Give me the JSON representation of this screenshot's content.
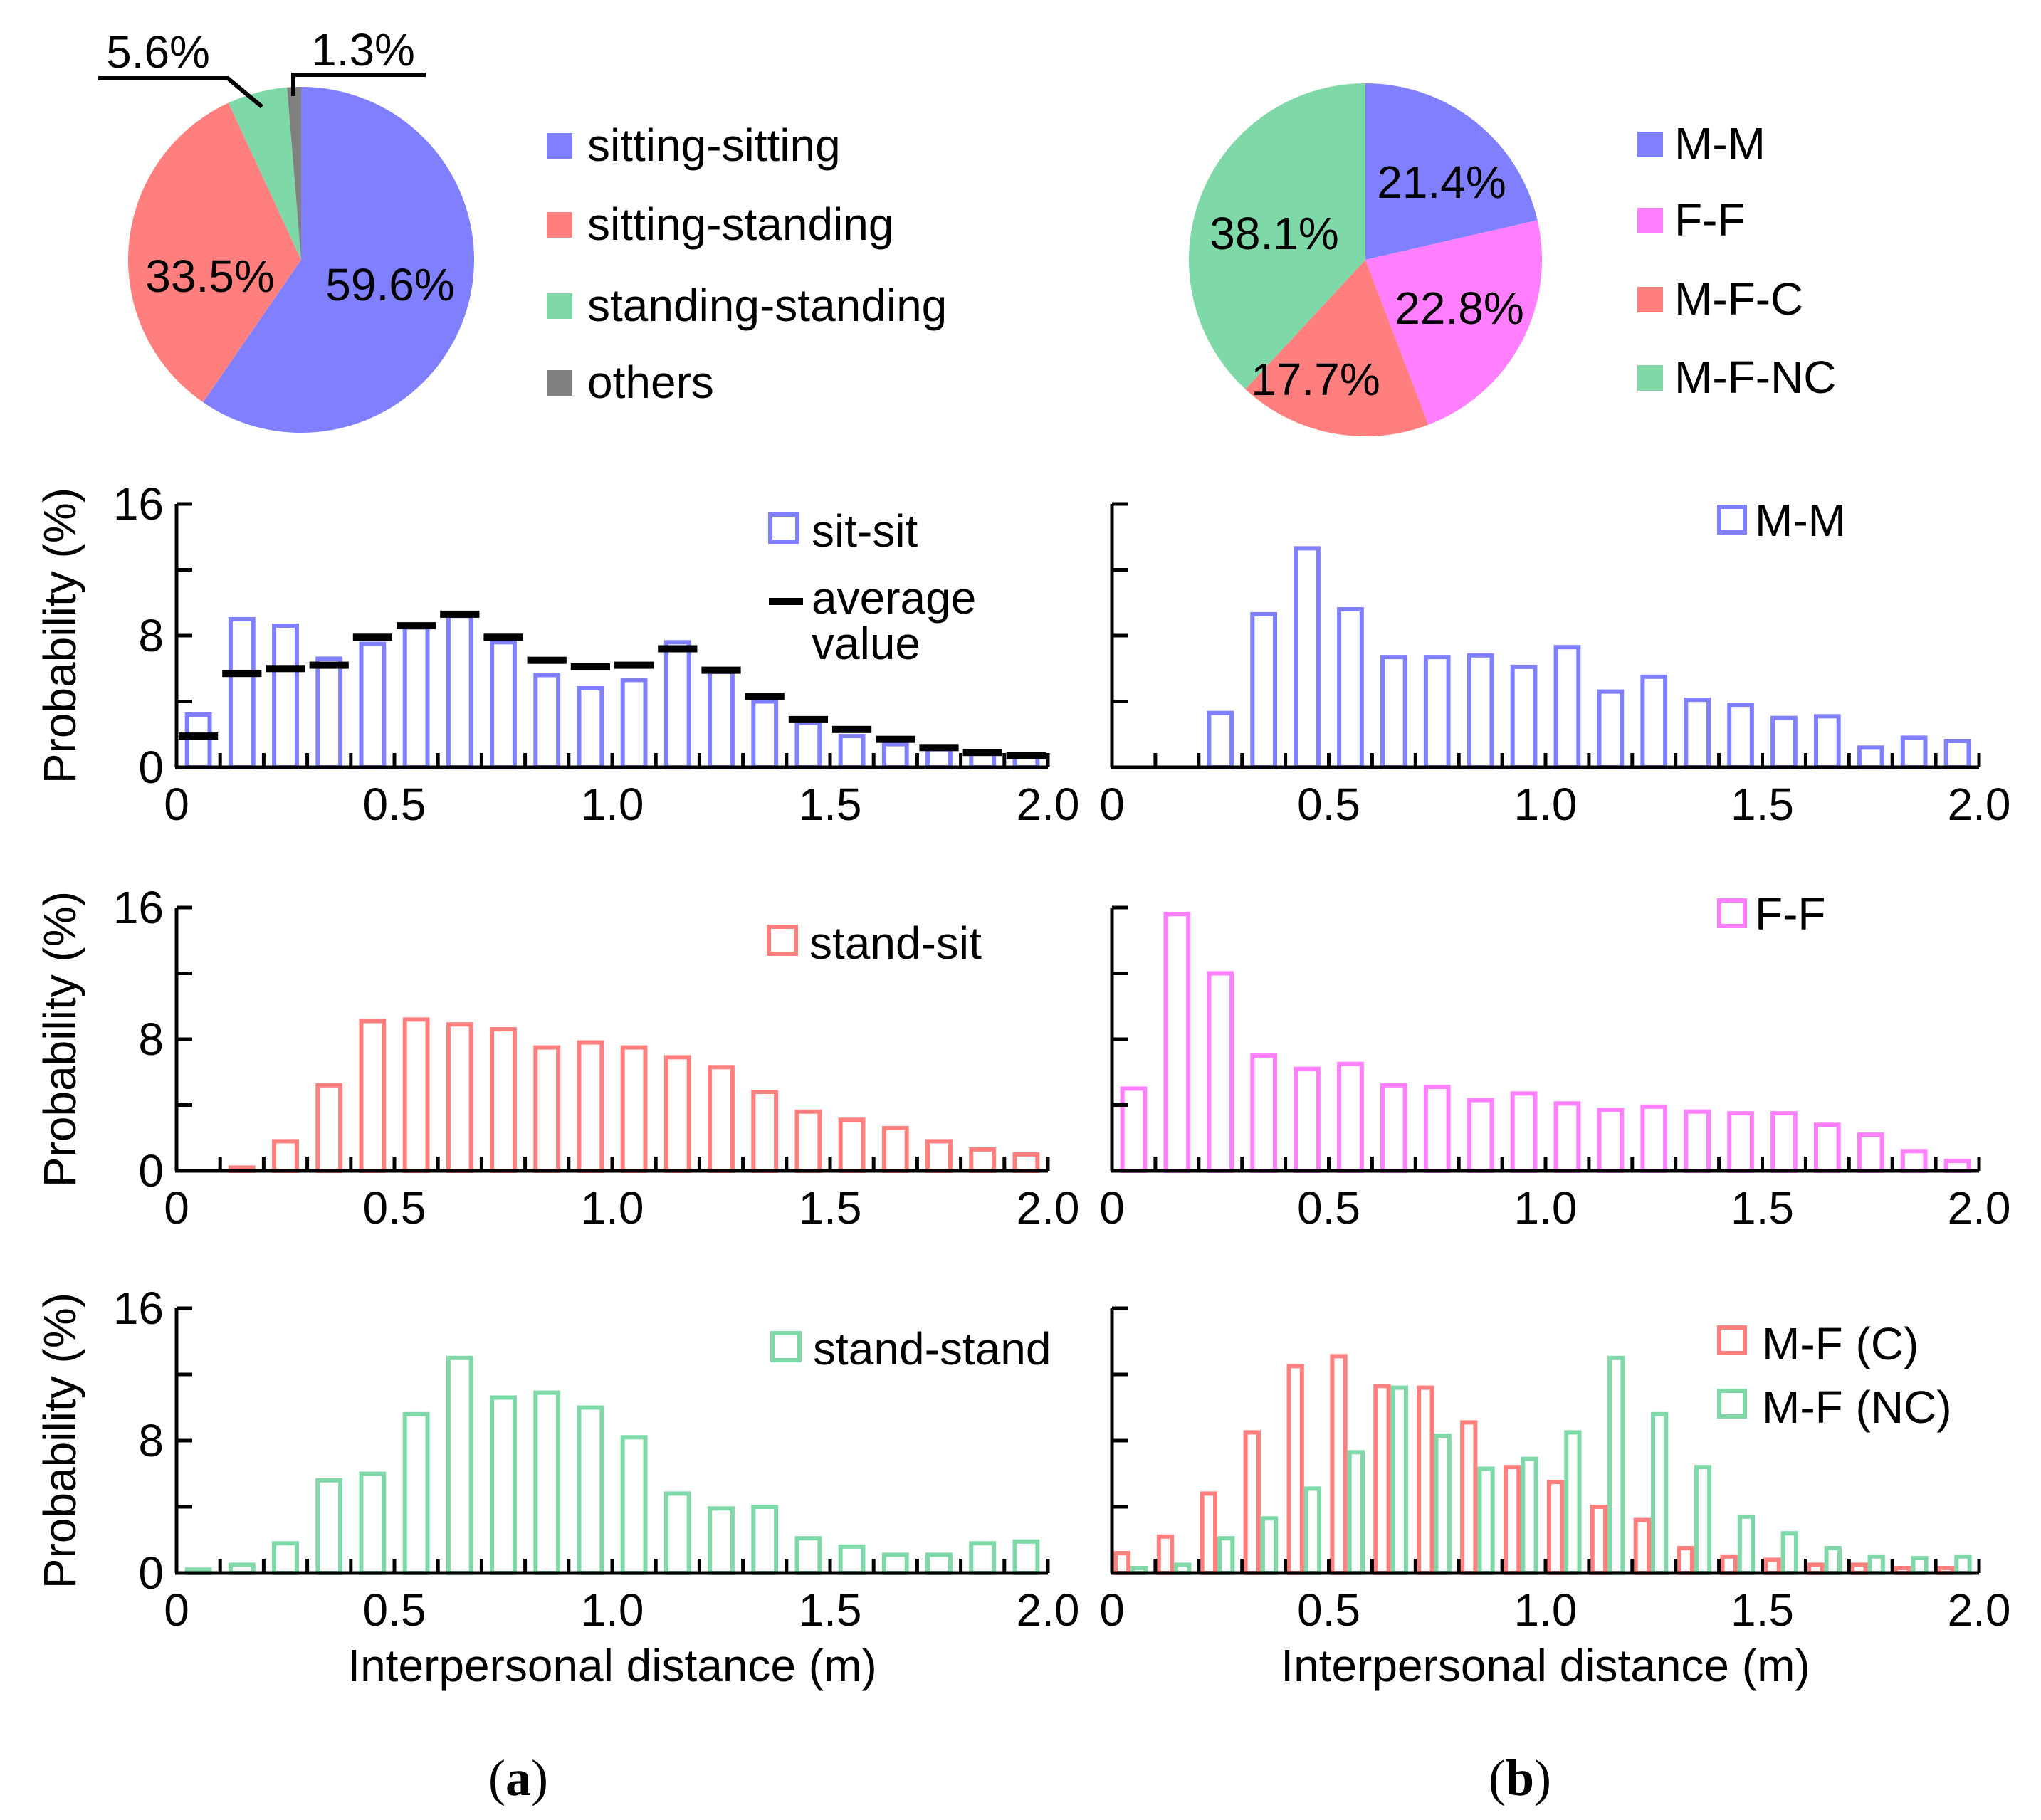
{
  "colors": {
    "blue": "#8080ff",
    "red": "#ff7f7f",
    "green": "#7fd8a8",
    "magenta": "#ff7fff",
    "gray": "#808080",
    "axis": "#000000"
  },
  "panel_labels": {
    "a_open": "(",
    "a": "a",
    "a_close": ")",
    "b_open": "(",
    "b": "b",
    "b_close": ")"
  },
  "chart_data": [
    {
      "id": "pie-a",
      "type": "pie",
      "slices": [
        {
          "label": "sitting-sitting",
          "value": 59.6,
          "text": "59.6%",
          "color": "#8080ff"
        },
        {
          "label": "sitting-standing",
          "value": 33.5,
          "text": "33.5%",
          "color": "#ff7f7f"
        },
        {
          "label": "standing-standing",
          "value": 5.6,
          "text": "5.6%",
          "color": "#7fd8a8"
        },
        {
          "label": "others",
          "value": 1.3,
          "text": "1.3%",
          "color": "#808080"
        }
      ],
      "legend": [
        "sitting-sitting",
        "sitting-standing",
        "standing-standing",
        "others"
      ]
    },
    {
      "id": "pie-b",
      "type": "pie",
      "slices": [
        {
          "label": "M-M",
          "value": 21.4,
          "text": "21.4%",
          "color": "#8080ff"
        },
        {
          "label": "F-F",
          "value": 22.8,
          "text": "22.8%",
          "color": "#ff7fff"
        },
        {
          "label": "M-F_C",
          "value": 17.7,
          "text": "17.7%",
          "color": "#ff7f7f"
        },
        {
          "label": "M-F_NC",
          "value": 38.1,
          "text": "38.1%",
          "color": "#7fd8a8"
        }
      ],
      "legend": [
        "M-M",
        "F-F",
        "M-F‐C",
        "M-F‐NC"
      ]
    },
    {
      "id": "hist-a1",
      "type": "bar",
      "x": [
        0.05,
        0.15,
        0.25,
        0.35,
        0.45,
        0.55,
        0.65,
        0.75,
        0.85,
        0.95,
        1.05,
        1.15,
        1.25,
        1.35,
        1.45,
        1.55,
        1.65,
        1.75,
        1.85,
        1.95
      ],
      "series": [
        {
          "name": "sit-sit",
          "color": "#8080ff",
          "values": [
            3.2,
            9.0,
            8.6,
            6.6,
            7.5,
            8.5,
            9.2,
            7.6,
            5.6,
            4.8,
            5.3,
            7.6,
            5.8,
            4.0,
            2.7,
            1.9,
            1.4,
            1.1,
            0.9,
            0.7
          ]
        }
      ],
      "average": {
        "name": "average value",
        "values": [
          1.9,
          5.7,
          6.0,
          6.2,
          7.9,
          8.6,
          9.3,
          7.9,
          6.5,
          6.1,
          6.2,
          7.2,
          5.9,
          4.3,
          2.9,
          2.3,
          1.7,
          1.2,
          0.9,
          0.7
        ]
      },
      "ylim": [
        0,
        16
      ],
      "yticks": [
        "0",
        "8",
        "16"
      ],
      "ylabel": "Probability (%)",
      "xlim": [
        0,
        2.0
      ],
      "xticks": [
        "0",
        "0.5",
        "1.0",
        "1.5",
        "2.0"
      ],
      "legend": [
        "sit-sit",
        "average",
        "value"
      ]
    },
    {
      "id": "hist-b1",
      "type": "bar",
      "x": [
        0.05,
        0.15,
        0.25,
        0.35,
        0.45,
        0.55,
        0.65,
        0.75,
        0.85,
        0.95,
        1.05,
        1.15,
        1.25,
        1.35,
        1.45,
        1.55,
        1.65,
        1.75,
        1.85,
        1.95
      ],
      "series": [
        {
          "name": "M-M",
          "color": "#8080ff",
          "values": [
            0,
            0,
            3.3,
            9.3,
            13.3,
            9.6,
            6.7,
            6.7,
            6.8,
            6.1,
            7.3,
            4.6,
            5.5,
            4.1,
            3.8,
            3.0,
            3.1,
            1.2,
            1.8,
            1.6
          ]
        }
      ],
      "ylim": [
        0,
        16
      ],
      "yticks": [],
      "xlim": [
        0,
        2.0
      ],
      "xticks": [
        "0",
        "0.5",
        "1.0",
        "1.5",
        "2.0"
      ],
      "legend": [
        "M-M"
      ]
    },
    {
      "id": "hist-a2",
      "type": "bar",
      "x": [
        0.05,
        0.15,
        0.25,
        0.35,
        0.45,
        0.55,
        0.65,
        0.75,
        0.85,
        0.95,
        1.05,
        1.15,
        1.25,
        1.35,
        1.45,
        1.55,
        1.65,
        1.75,
        1.85,
        1.95
      ],
      "series": [
        {
          "name": "stand-sit",
          "color": "#ff7f7f",
          "values": [
            0,
            0.2,
            1.8,
            5.2,
            9.1,
            9.2,
            8.9,
            8.6,
            7.5,
            7.8,
            7.5,
            6.9,
            6.3,
            4.8,
            3.6,
            3.1,
            2.6,
            1.8,
            1.3,
            1.0
          ]
        }
      ],
      "ylim": [
        0,
        16
      ],
      "yticks": [
        "0",
        "8",
        "16"
      ],
      "ylabel": "Probability (%)",
      "xlim": [
        0,
        2.0
      ],
      "xticks": [
        "0",
        "0.5",
        "1.0",
        "1.5",
        "2.0"
      ],
      "legend": [
        "stand-sit"
      ]
    },
    {
      "id": "hist-b2",
      "type": "bar",
      "x": [
        0.05,
        0.15,
        0.25,
        0.35,
        0.45,
        0.55,
        0.65,
        0.75,
        0.85,
        0.95,
        1.05,
        1.15,
        1.25,
        1.35,
        1.45,
        1.55,
        1.65,
        1.75,
        1.85,
        1.95
      ],
      "series": [
        {
          "name": "F-F",
          "color": "#ff7fff",
          "values": [
            5.0,
            15.6,
            12.0,
            7.0,
            6.2,
            6.5,
            5.2,
            5.1,
            4.3,
            4.7,
            4.1,
            3.7,
            3.9,
            3.6,
            3.5,
            3.5,
            2.8,
            2.2,
            1.2,
            0.6
          ]
        }
      ],
      "ylim": [
        0,
        16
      ],
      "yticks": [],
      "xlim": [
        0,
        2.0
      ],
      "xticks": [
        "0",
        "0.5",
        "1.0",
        "1.5",
        "2.0"
      ],
      "legend": [
        "F-F"
      ]
    },
    {
      "id": "hist-a3",
      "type": "bar",
      "x": [
        0.05,
        0.15,
        0.25,
        0.35,
        0.45,
        0.55,
        0.65,
        0.75,
        0.85,
        0.95,
        1.05,
        1.15,
        1.25,
        1.35,
        1.45,
        1.55,
        1.65,
        1.75,
        1.85,
        1.95
      ],
      "series": [
        {
          "name": "stand-stand",
          "color": "#7fd8a8",
          "values": [
            0.2,
            0.5,
            1.8,
            5.6,
            6.0,
            9.6,
            13.0,
            10.6,
            10.9,
            10.0,
            8.2,
            4.8,
            3.9,
            4.0,
            2.1,
            1.6,
            1.1,
            1.1,
            1.8,
            1.9
          ]
        }
      ],
      "ylim": [
        0,
        16
      ],
      "yticks": [
        "0",
        "8",
        "16"
      ],
      "ylabel": "Probability (%)",
      "xlim": [
        0,
        2.0
      ],
      "xticks": [
        "0",
        "0.5",
        "1.0",
        "1.5",
        "2.0"
      ],
      "xlabel": "Interpersonal distance (m)",
      "legend": [
        "stand-stand"
      ]
    },
    {
      "id": "hist-b3",
      "type": "bar",
      "x": [
        0.05,
        0.15,
        0.25,
        0.35,
        0.45,
        0.55,
        0.65,
        0.75,
        0.85,
        0.95,
        1.05,
        1.15,
        1.25,
        1.35,
        1.45,
        1.55,
        1.65,
        1.75,
        1.85,
        1.95
      ],
      "series": [
        {
          "name": "M-F (C)",
          "color": "#ff7f7f",
          "values": [
            1.2,
            2.2,
            4.8,
            8.5,
            12.5,
            13.1,
            11.3,
            11.2,
            9.1,
            6.4,
            5.5,
            4.0,
            3.2,
            1.5,
            1.0,
            0.8,
            0.5,
            0.5,
            0.3,
            0.3
          ]
        },
        {
          "name": "M-F (NC)",
          "color": "#7fd8a8",
          "values": [
            0.3,
            0.5,
            2.1,
            3.3,
            5.1,
            7.3,
            11.2,
            8.3,
            6.3,
            6.9,
            8.5,
            13.0,
            9.6,
            6.4,
            3.4,
            2.4,
            1.5,
            1.0,
            0.9,
            1.0
          ]
        }
      ],
      "ylim": [
        0,
        16
      ],
      "yticks": [],
      "xlim": [
        0,
        2.0
      ],
      "xticks": [
        "0",
        "0.5",
        "1.0",
        "1.5",
        "2.0"
      ],
      "xlabel": "Interpersonal distance (m)",
      "legend": [
        "M-F (C)",
        "M-F (NC)"
      ]
    }
  ]
}
